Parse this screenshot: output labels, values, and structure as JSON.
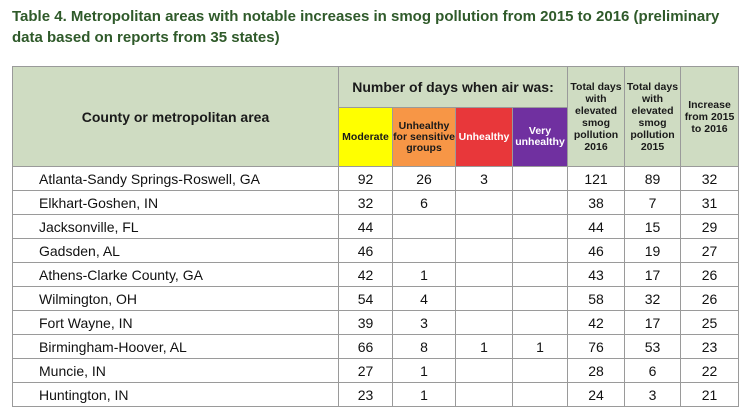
{
  "title": "Table 4. Metropolitan areas with notable increases in smog pollution from 2015 to 2016 (preliminary data based on reports from 35 states)",
  "table": {
    "header": {
      "county": "County or metropolitan area",
      "days_group": "Number of days when air was:",
      "levels": [
        "Moderate",
        "Unhealthy for sensitive groups",
        "Unhealthy",
        "Very unhealthy"
      ],
      "totals": [
        "Total days with elevated smog pollution 2016",
        "Total days with elevated smog pollution 2015",
        "Increase from 2015 to 2016"
      ]
    },
    "rows": [
      [
        "Atlanta-Sandy Springs-Roswell, GA",
        92,
        26,
        3,
        null,
        121,
        89,
        32
      ],
      [
        "Elkhart-Goshen, IN",
        32,
        6,
        null,
        null,
        38,
        7,
        31
      ],
      [
        "Jacksonville, FL",
        44,
        null,
        null,
        null,
        44,
        15,
        29
      ],
      [
        "Gadsden, AL",
        46,
        null,
        null,
        null,
        46,
        19,
        27
      ],
      [
        "Athens-Clarke County, GA",
        42,
        1,
        null,
        null,
        43,
        17,
        26
      ],
      [
        "Wilmington, OH",
        54,
        4,
        null,
        null,
        58,
        32,
        26
      ],
      [
        "Fort Wayne, IN",
        39,
        3,
        null,
        null,
        42,
        17,
        25
      ],
      [
        "Birmingham-Hoover, AL",
        66,
        8,
        1,
        1,
        76,
        53,
        23
      ],
      [
        "Muncie, IN",
        27,
        1,
        null,
        null,
        28,
        6,
        22
      ],
      [
        "Huntington, IN",
        23,
        1,
        null,
        null,
        24,
        3,
        21
      ]
    ]
  }
}
